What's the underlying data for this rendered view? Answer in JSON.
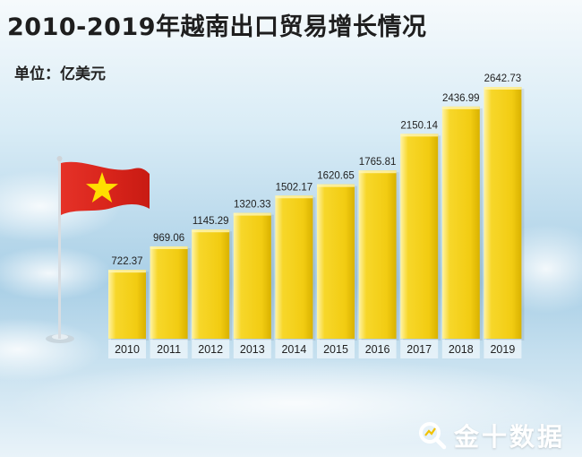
{
  "title": "2010-2019年越南出口贸易增长情况",
  "unit_label": "单位：亿美元",
  "logo_text": "金十数据",
  "chart_data": {
    "type": "bar",
    "categories": [
      "2010",
      "2011",
      "2012",
      "2013",
      "2014",
      "2015",
      "2016",
      "2017",
      "2018",
      "2019"
    ],
    "values": [
      722.37,
      969.06,
      1145.29,
      1320.33,
      1502.17,
      1620.65,
      1765.81,
      2150.14,
      2436.99,
      2642.73
    ],
    "value_labels": [
      "722.37",
      "969.06",
      "1145.29",
      "1320.33",
      "1502.17",
      "1620.65",
      "1765.81",
      "2150.14",
      "2436.99",
      "2642.73"
    ],
    "title": "2010-2019年越南出口贸易增长情况",
    "ylabel": "单位：亿美元",
    "xlabel": "",
    "ylim": [
      0,
      2642.73
    ],
    "grid": false,
    "bar_color": "#f5d215"
  },
  "colors": {
    "bar": "#f5d215",
    "bar_shadow": "#d9b200",
    "flag": "#da251d",
    "star": "#ffde00"
  }
}
